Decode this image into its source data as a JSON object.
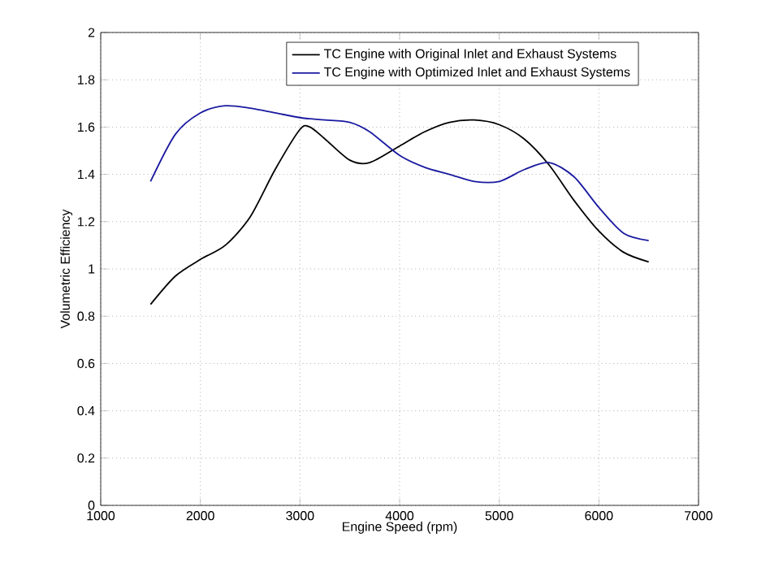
{
  "chart_data": {
    "type": "line",
    "xlabel": "Engine Speed (rpm)",
    "ylabel": "Volumetric Efficiency",
    "x": [
      1500,
      1750,
      2000,
      2250,
      2500,
      2750,
      3000,
      3100,
      3250,
      3500,
      3700,
      4000,
      4250,
      4500,
      4750,
      5000,
      5250,
      5500,
      5750,
      6000,
      6250,
      6500
    ],
    "series": [
      {
        "name": "TC Engine with Original Inlet and Exhaust Systems",
        "color": "#000000",
        "values": [
          0.85,
          0.97,
          1.04,
          1.1,
          1.22,
          1.42,
          1.59,
          1.6,
          1.55,
          1.46,
          1.45,
          1.52,
          1.58,
          1.62,
          1.63,
          1.61,
          1.55,
          1.44,
          1.29,
          1.16,
          1.07,
          1.03
        ]
      },
      {
        "name": "TC Engine with Optimized Inlet and Exhaust Systems",
        "color": "#1a1aa0",
        "values": [
          1.37,
          1.57,
          1.66,
          1.69,
          1.68,
          1.66,
          1.64,
          1.635,
          1.63,
          1.62,
          1.58,
          1.48,
          1.43,
          1.4,
          1.37,
          1.37,
          1.42,
          1.45,
          1.39,
          1.26,
          1.15,
          1.12
        ]
      }
    ],
    "xlim": [
      1000,
      7000
    ],
    "ylim": [
      0,
      2
    ],
    "xticks": [
      1000,
      2000,
      3000,
      4000,
      5000,
      6000,
      7000
    ],
    "yticks": [
      0,
      0.2,
      0.4,
      0.6,
      0.8,
      1,
      1.2,
      1.4,
      1.6,
      1.8,
      2
    ],
    "grid": true,
    "legend": "top right",
    "marker": "none",
    "line_style": "solid"
  }
}
